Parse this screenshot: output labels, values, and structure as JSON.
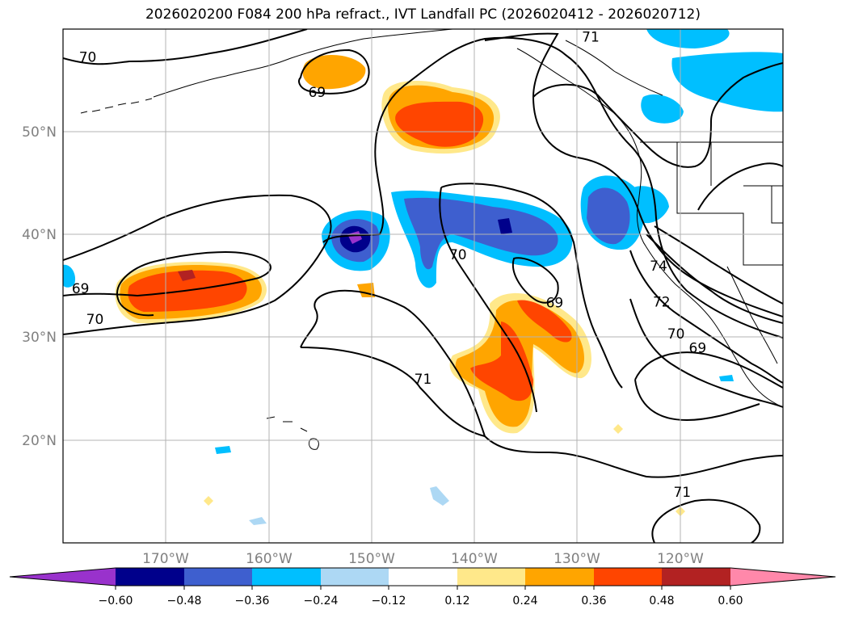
{
  "title": "2026020200 F084 200 hPa refract., IVT Landfall PC (2026020412 - 2026020712)",
  "map": {
    "projection": "plate-carree",
    "lon_range": [
      -180,
      -110
    ],
    "lat_range": [
      10,
      60
    ],
    "lat_ticks": [
      "20°N",
      "30°N",
      "40°N",
      "50°N"
    ],
    "lon_ticks": [
      "170°W",
      "160°W",
      "150°W",
      "140°W",
      "130°W",
      "120°W"
    ],
    "grid": true
  },
  "contour_labels": [
    {
      "text": "70",
      "lon": -177.6,
      "lat": 56.8
    },
    {
      "text": "71",
      "lon": -128.7,
      "lat": 58.8
    },
    {
      "text": "69",
      "lon": -155.3,
      "lat": 53.4
    },
    {
      "text": "69",
      "lon": -178.3,
      "lat": 34.3
    },
    {
      "text": "70",
      "lon": -176.9,
      "lat": 31.3
    },
    {
      "text": "70",
      "lon": -141.6,
      "lat": 37.6
    },
    {
      "text": "69",
      "lon": -132.2,
      "lat": 32.9
    },
    {
      "text": "74",
      "lon": -122.1,
      "lat": 36.5
    },
    {
      "text": "72",
      "lon": -121.8,
      "lat": 33.0
    },
    {
      "text": "70",
      "lon": -120.4,
      "lat": 29.9
    },
    {
      "text": "69",
      "lon": -118.3,
      "lat": 28.5
    },
    {
      "text": "71",
      "lon": -145.0,
      "lat": 25.5
    },
    {
      "text": "71",
      "lon": -119.8,
      "lat": 14.5
    }
  ],
  "colorbar": {
    "ticks": [
      "−0.60",
      "−0.48",
      "−0.36",
      "−0.24",
      "−0.12",
      "0.12",
      "0.24",
      "0.36",
      "0.48",
      "0.60"
    ],
    "colors": [
      "#9932cc",
      "#00008b",
      "#3e5fcf",
      "#00bfff",
      "#add8f4",
      "#ffffff",
      "#ffe88a",
      "#ffa500",
      "#ff4500",
      "#b22222",
      "#ff88aa"
    ]
  }
}
